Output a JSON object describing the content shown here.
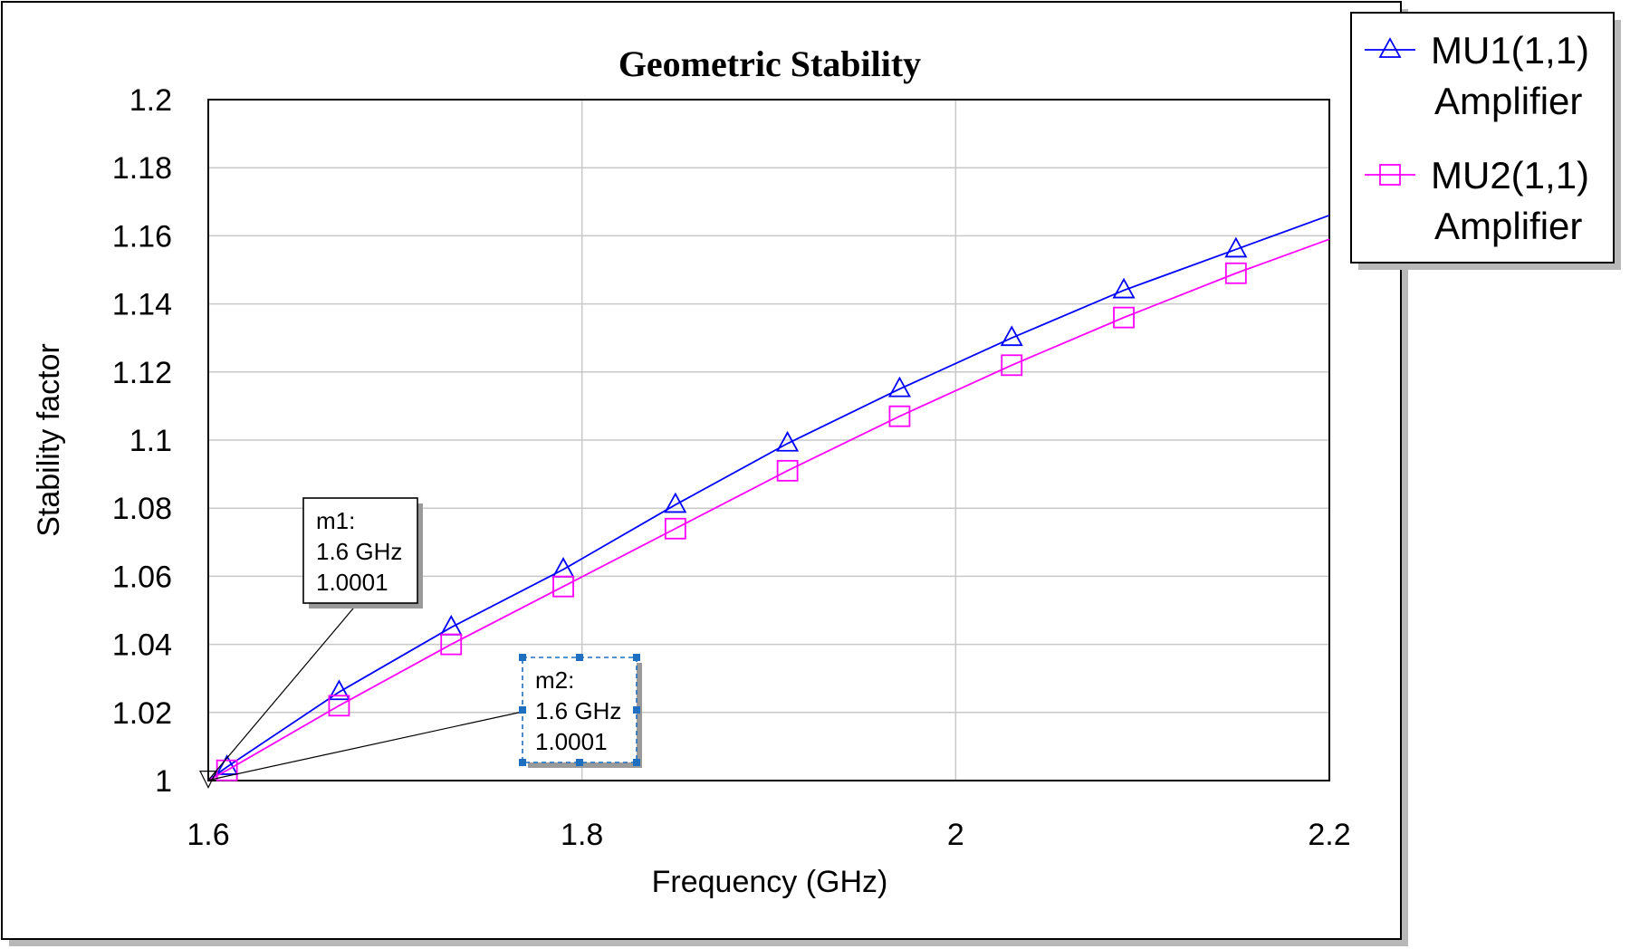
{
  "chart_data": {
    "type": "line",
    "title": "Geometric Stability",
    "xlabel": "Frequency (GHz)",
    "ylabel": "Stability factor",
    "xlim": [
      1.6,
      2.2
    ],
    "ylim": [
      1.0,
      1.2
    ],
    "xticks": [
      "1.6",
      "1.8",
      "2",
      "2.2"
    ],
    "yticks": [
      "1",
      "1.02",
      "1.04",
      "1.06",
      "1.08",
      "1.1",
      "1.12",
      "1.14",
      "1.16",
      "1.18",
      "1.2"
    ],
    "grid": true,
    "legend_position": "top-right",
    "series": [
      {
        "name": "MU1(1,1)\nAmplifier",
        "legend_lines": [
          "MU1(1,1)",
          "Amplifier"
        ],
        "color": "#0000ff",
        "marker": "triangle",
        "x": [
          1.6,
          1.61,
          1.67,
          1.73,
          1.79,
          1.85,
          1.91,
          1.97,
          2.03,
          2.09,
          2.15,
          2.2
        ],
        "y": [
          1.0001,
          1.004,
          1.026,
          1.045,
          1.062,
          1.081,
          1.099,
          1.115,
          1.13,
          1.144,
          1.156,
          1.166
        ]
      },
      {
        "name": "MU2(1,1)\nAmplifier",
        "legend_lines": [
          "MU2(1,1)",
          "Amplifier"
        ],
        "color": "#ff00ff",
        "marker": "square",
        "x": [
          1.6,
          1.61,
          1.67,
          1.73,
          1.79,
          1.85,
          1.91,
          1.97,
          2.03,
          2.09,
          2.15,
          2.2
        ],
        "y": [
          1.0001,
          1.003,
          1.022,
          1.04,
          1.057,
          1.074,
          1.091,
          1.107,
          1.122,
          1.136,
          1.149,
          1.159
        ]
      }
    ],
    "markers": [
      {
        "id": "m1",
        "lines": [
          "m1:",
          "1.6 GHz",
          "1.0001"
        ],
        "x": 1.6,
        "y": 1.0001,
        "selected": false
      },
      {
        "id": "m2",
        "lines": [
          "m2:",
          "1.6 GHz",
          "1.0001"
        ],
        "x": 1.6,
        "y": 1.0001,
        "selected": true
      }
    ]
  }
}
